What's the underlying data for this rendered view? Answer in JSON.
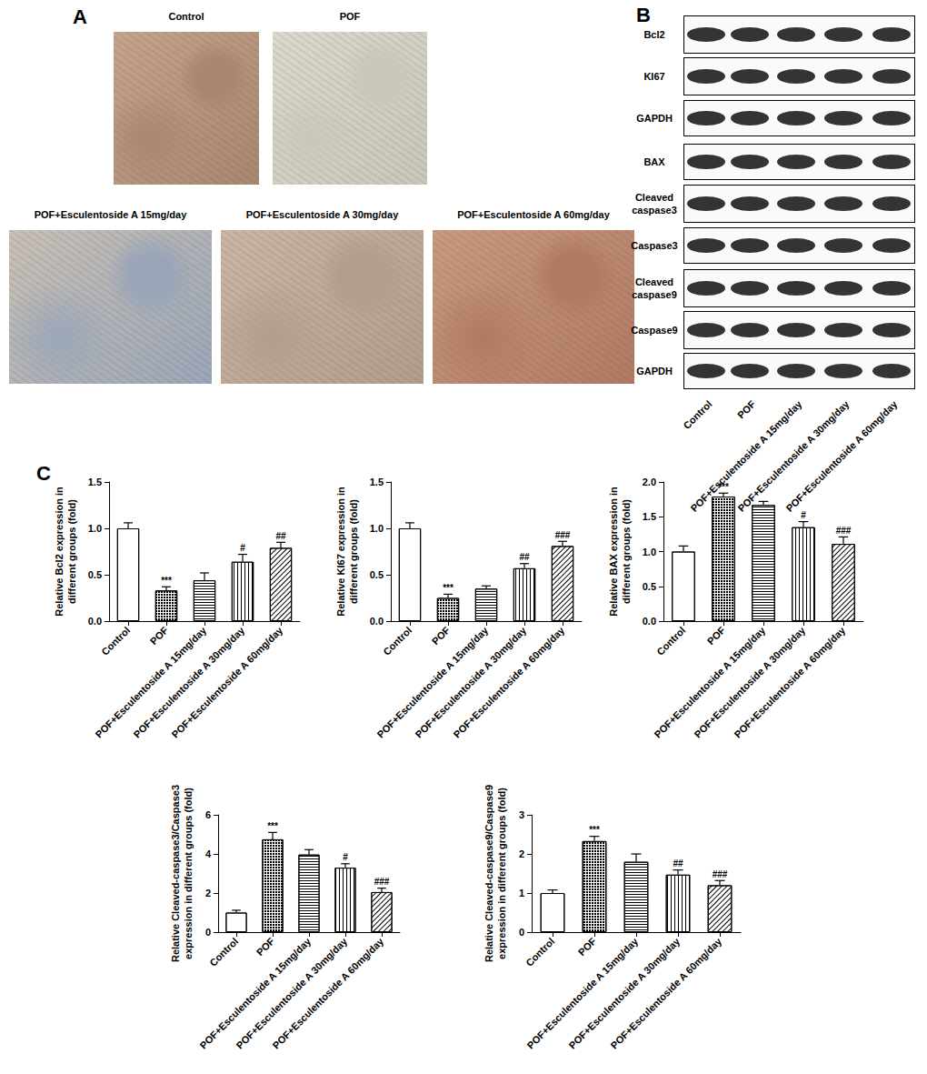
{
  "panel_labels": [
    "A",
    "B",
    "C"
  ],
  "micrographs": {
    "titles": [
      "Control",
      "POF",
      "POF+Esculentoside A 15mg/day",
      "POF+Esculentoside A 30mg/day",
      "POF+Esculentoside A 60mg/day"
    ]
  },
  "blot": {
    "rows": [
      "Bcl2",
      "KI67",
      "GAPDH",
      "BAX",
      "Cleaved\ncaspase3",
      "Caspase3",
      "Cleaved\ncaspase9",
      "Caspase9",
      "GAPDH"
    ],
    "lanes": [
      "Control",
      "POF",
      "POF+Esculentoside A 15mg/day",
      "POF+Esculentoside A 30mg/day",
      "POF+Esculentoside A 60mg/day"
    ]
  },
  "chart_data": [
    {
      "type": "bar",
      "ylabel": "Relative Bcl2 expression in\ndifferent groups (fold)",
      "categories": [
        "Control",
        "POF",
        "POF+Esculentoside A 15mg/day",
        "POF+Esculentoside A 30mg/day",
        "POF+Esculentoside A 60mg/day"
      ],
      "values": [
        1.0,
        0.33,
        0.44,
        0.64,
        0.79
      ],
      "errors": [
        0.06,
        0.04,
        0.08,
        0.08,
        0.06
      ],
      "annotations": [
        null,
        "***",
        null,
        "#",
        "##"
      ],
      "color": "#000000",
      "ylim": [
        0,
        1.5
      ],
      "yticks": [
        {
          "value": 0,
          "label": "0.0"
        },
        0.5,
        {
          "value": 1,
          "label": "1.0"
        },
        1.5
      ],
      "grid": false
    },
    {
      "type": "bar",
      "ylabel": "Relative KI67 expression in\ndifferent groups (fold)",
      "categories": [
        "Control",
        "POF",
        "POF+Esculentoside A 15mg/day",
        "POF+Esculentoside A 30mg/day",
        "POF+Esculentoside A 60mg/day"
      ],
      "values": [
        1.0,
        0.25,
        0.35,
        0.57,
        0.81
      ],
      "errors": [
        0.06,
        0.04,
        0.03,
        0.05,
        0.05
      ],
      "annotations": [
        null,
        "***",
        null,
        "##",
        "###"
      ],
      "color": "#000000",
      "ylim": [
        0,
        1.5
      ],
      "yticks": [
        {
          "value": 0,
          "label": "0.0"
        },
        0.5,
        {
          "value": 1,
          "label": "1.0"
        },
        1.5
      ],
      "grid": false
    },
    {
      "type": "bar",
      "ylabel": "Relative BAX expression in\ndifferent groups (fold)",
      "categories": [
        "Control",
        "POF",
        "POF+Esculentoside A 15mg/day",
        "POF+Esculentoside A 30mg/day",
        "POF+Esculentoside A 60mg/day"
      ],
      "values": [
        1.0,
        1.79,
        1.67,
        1.35,
        1.11
      ],
      "errors": [
        0.08,
        0.05,
        0.05,
        0.08,
        0.1
      ],
      "annotations": [
        null,
        "***",
        null,
        "#",
        "###"
      ],
      "color": "#000000",
      "ylim": [
        0,
        2
      ],
      "yticks": [
        {
          "value": 0,
          "label": "0.0"
        },
        0.5,
        {
          "value": 1,
          "label": "1.0"
        },
        1.5,
        {
          "value": 2,
          "label": "2.0"
        }
      ],
      "grid": false
    },
    {
      "type": "bar",
      "ylabel": "Relative Cleaved-caspase3/Caspase3\nexpression in different groups (fold)",
      "categories": [
        "Control",
        "POF",
        "POF+Esculentoside A 15mg/day",
        "POF+Esculentoside A 30mg/day",
        "POF+Esculentoside A 60mg/day"
      ],
      "values": [
        1.0,
        4.75,
        3.97,
        3.3,
        2.05
      ],
      "errors": [
        0.12,
        0.35,
        0.25,
        0.2,
        0.2
      ],
      "annotations": [
        null,
        "***",
        null,
        "#",
        "###"
      ],
      "color": "#000000",
      "ylim": [
        0,
        6
      ],
      "yticks": [
        0,
        2,
        4,
        6
      ],
      "grid": false
    },
    {
      "type": "bar",
      "ylabel": "Relative Cleaved-caspase9/Caspase9\nexpression in different groups (fold)",
      "categories": [
        "Control",
        "POF",
        "POF+Esculentoside A 15mg/day",
        "POF+Esculentoside A 30mg/day",
        "POF+Esculentoside A 60mg/day"
      ],
      "values": [
        1.0,
        2.33,
        1.8,
        1.47,
        1.2
      ],
      "errors": [
        0.08,
        0.12,
        0.2,
        0.12,
        0.12
      ],
      "annotations": [
        null,
        "***",
        null,
        "##",
        "###"
      ],
      "color": "#000000",
      "ylim": [
        0,
        3
      ],
      "yticks": [
        0,
        1,
        2,
        3
      ],
      "grid": false
    }
  ]
}
